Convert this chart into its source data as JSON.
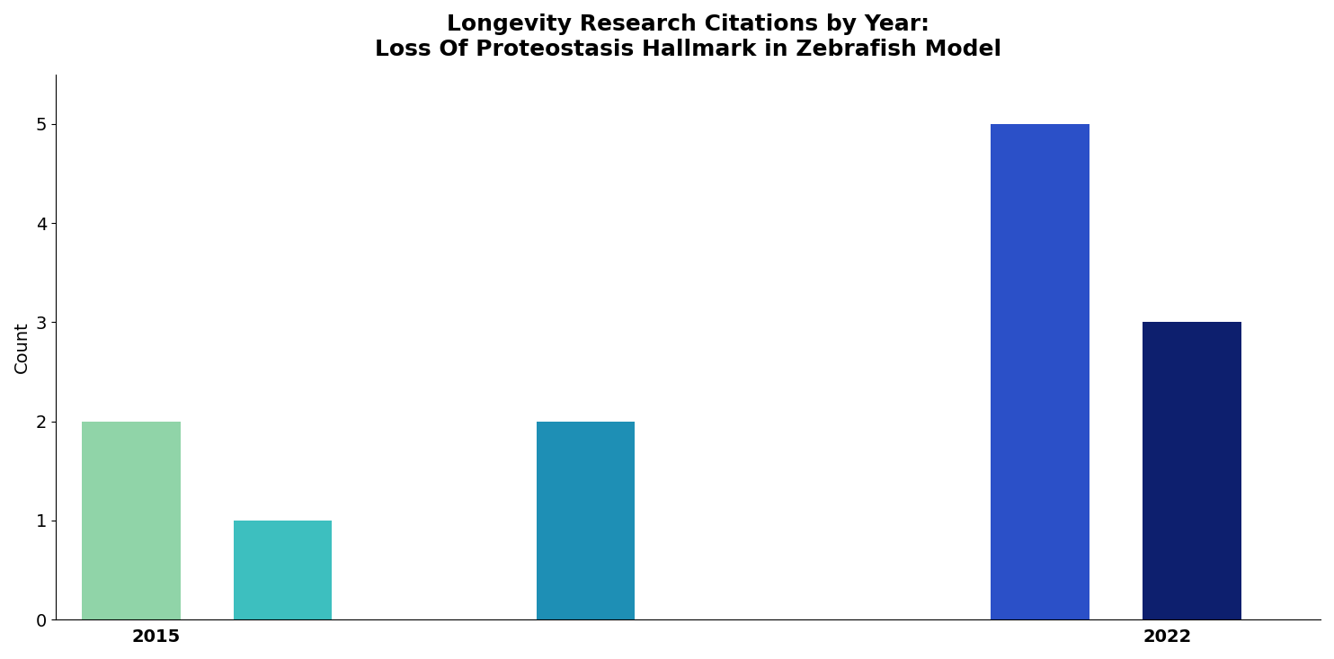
{
  "title_line1": "Longevity Research Citations by Year:",
  "title_line2": "Loss Of Proteostasis Hallmark in Zebrafish Model",
  "ylabel": "Count",
  "years": [
    2015,
    2016,
    2018,
    2021,
    2022
  ],
  "values": [
    2,
    1,
    2,
    5,
    3
  ],
  "bar_colors": [
    "#90d4a8",
    "#3dbfbf",
    "#1e8fb5",
    "#2b50c8",
    "#0d1f6e"
  ],
  "xlim_left": 2014.5,
  "xlim_right": 2022.85,
  "xtick_positions": [
    2015,
    2022
  ],
  "xtick_labels": [
    "2015",
    "2022"
  ],
  "ylim": [
    0,
    5.5
  ],
  "yticks": [
    0,
    1,
    2,
    3,
    4,
    5
  ],
  "background_color": "#ffffff",
  "title_fontsize": 18,
  "axis_label_fontsize": 14,
  "tick_fontsize": 14,
  "bar_width": 0.65
}
